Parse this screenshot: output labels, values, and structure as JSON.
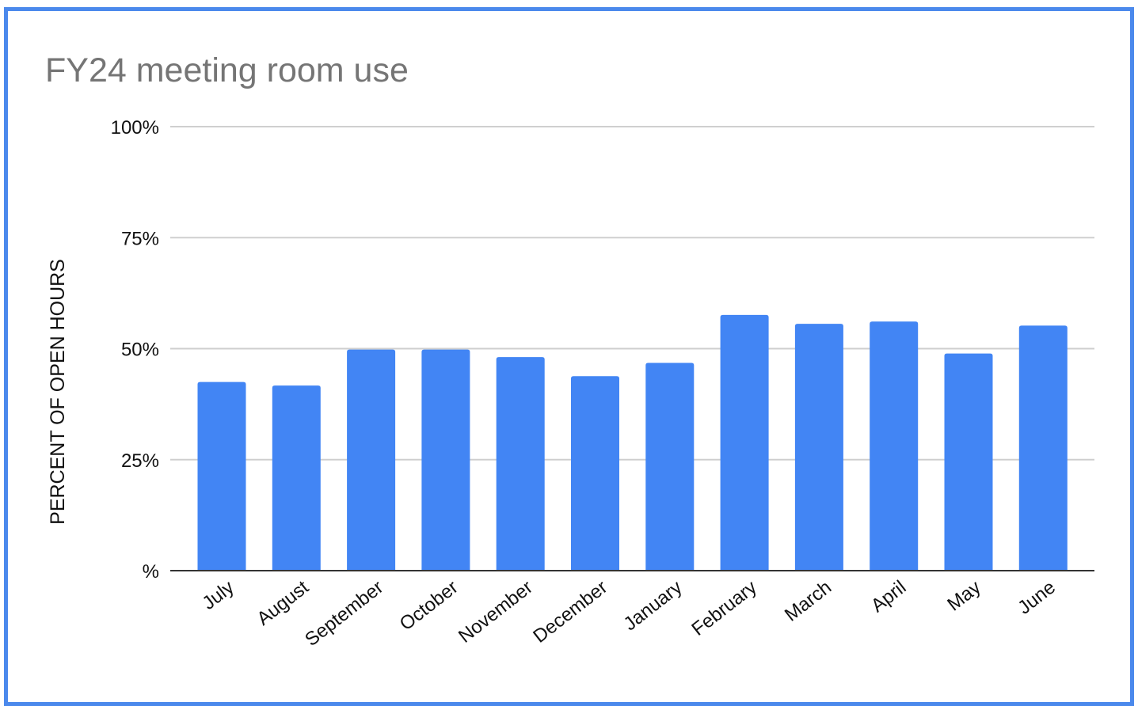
{
  "chart_data": {
    "type": "bar",
    "title": "FY24 meeting room use",
    "xlabel": "",
    "ylabel": "PERCENT OF OPEN HOURS",
    "ylim": [
      0,
      100
    ],
    "yticks": [
      0,
      25,
      50,
      75,
      100
    ],
    "ytick_labels": [
      "%",
      "25%",
      "50%",
      "75%",
      "100%"
    ],
    "categories": [
      "July",
      "August",
      "September",
      "October",
      "November",
      "December",
      "January",
      "February",
      "March",
      "April",
      "May",
      "June"
    ],
    "values": [
      42.5,
      41.7,
      49.8,
      49.8,
      48.1,
      43.8,
      46.8,
      57.6,
      55.6,
      56.1,
      48.9,
      55.2
    ],
    "grid": true,
    "legend": "none",
    "colors": {
      "bar": "#4285f4",
      "grid": "#cfcfcf",
      "baseline": "#333333",
      "border": "#4b89ec",
      "title": "#757575"
    }
  }
}
